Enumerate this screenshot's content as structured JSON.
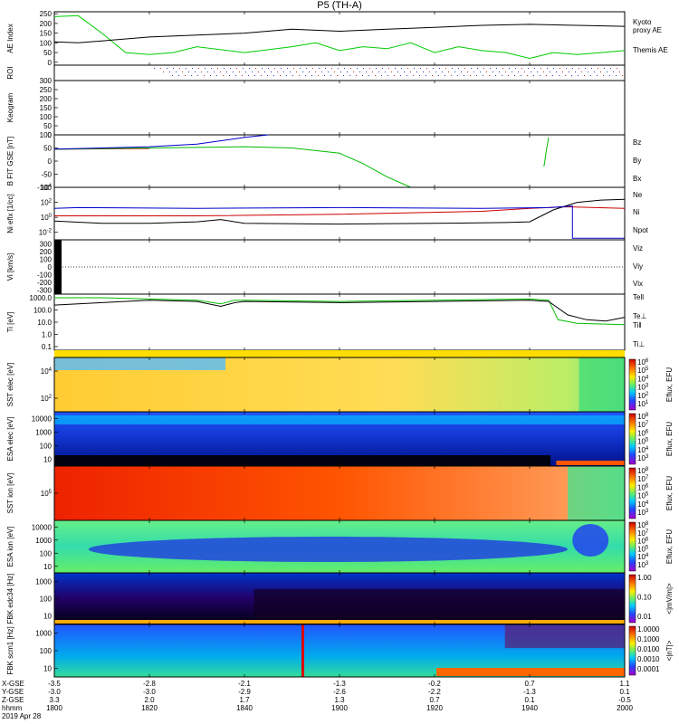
{
  "title": "P5 (TH-A)",
  "chart_data": {
    "type": "line",
    "title": "P5 (TH-A)",
    "date_label": "2019 Apr 28",
    "time_axis": {
      "rows": [
        {
          "label": "X-GSE",
          "values": [
            "-3.5",
            "-2.8",
            "-2.1",
            "-1.3",
            "-0.2",
            "0.7",
            "1.1"
          ]
        },
        {
          "label": "Y-GSE",
          "values": [
            "-3.0",
            "-3.0",
            "-2.9",
            "-2.6",
            "-2.2",
            "-1.3",
            "0.1"
          ]
        },
        {
          "label": "Z-GSE",
          "values": [
            "3.3",
            "2.0",
            "1.7",
            "1.3",
            "0.7",
            "0.1",
            "-0.5"
          ]
        },
        {
          "label": "hhmm",
          "values": [
            "1800",
            "1820",
            "1840",
            "1900",
            "1920",
            "1940",
            "2000"
          ]
        }
      ]
    },
    "panels": [
      {
        "id": "ae",
        "ylabel": "AE Index",
        "ylim": [
          -15,
          260
        ],
        "yticks": [
          "250",
          "200",
          "150",
          "100",
          "50",
          "0"
        ],
        "legend": [
          {
            "text": "Kyoto",
            "color": "#00cc00"
          },
          {
            "text": "proxy AE",
            "color": "#00cc00"
          },
          {
            "text": "Themis AE",
            "color": "#000000"
          }
        ],
        "series": [
          {
            "name": "Kyoto proxy AE",
            "color": "#00cc00",
            "x": [
              0,
              5,
              10,
              15,
              20,
              25,
              30,
              40,
              50,
              55,
              60,
              65,
              70,
              75,
              80,
              85,
              90,
              95,
              100,
              105,
              110,
              115,
              120
            ],
            "y": [
              235,
              240,
              150,
              50,
              40,
              50,
              80,
              50,
              80,
              100,
              60,
              80,
              70,
              100,
              50,
              80,
              60,
              50,
              20,
              50,
              40,
              50,
              60
            ]
          },
          {
            "name": "Themis AE",
            "color": "#000000",
            "x": [
              0,
              5,
              10,
              20,
              30,
              40,
              50,
              60,
              70,
              80,
              90,
              100,
              110,
              120
            ],
            "y": [
              105,
              100,
              110,
              130,
              140,
              150,
              170,
              160,
              170,
              180,
              190,
              195,
              190,
              185
            ]
          }
        ]
      },
      {
        "id": "roi",
        "ylabel": "ROI"
      },
      {
        "id": "keogram",
        "ylabel": "Keogram",
        "ylim": [
          0,
          300
        ],
        "yticks": [
          "300",
          "250",
          "200",
          "150",
          "100",
          "50",
          "0"
        ]
      },
      {
        "id": "bfield",
        "ylabel": "B FIT GSE [nT]",
        "ylim": [
          -100,
          100
        ],
        "yticks": [
          "100",
          "50",
          "0",
          "-50",
          "-100"
        ],
        "legend": [
          {
            "text": "Bz",
            "color": "#cc0000"
          },
          {
            "text": "By",
            "color": "#00bb00"
          },
          {
            "text": "Bx",
            "color": "#0000cc"
          }
        ],
        "series": [
          {
            "name": "Bz",
            "color": "#cc0000",
            "x": [
              0,
              20
            ],
            "y": [
              45,
              48
            ]
          },
          {
            "name": "By",
            "color": "#00bb00",
            "x": [
              0,
              10,
              20,
              30,
              40,
              50,
              60,
              65,
              70,
              75
            ],
            "y": [
              45,
              48,
              50,
              52,
              55,
              50,
              30,
              -10,
              -60,
              -120
            ]
          },
          {
            "name": "Bx",
            "color": "#0000cc",
            "x": [
              0,
              10,
              20,
              30,
              40,
              45
            ],
            "y": [
              46,
              50,
              55,
              65,
              90,
              100
            ]
          },
          {
            "name": "By2",
            "color": "#00bb00",
            "x": [
              103,
              103.2,
              103.5,
              103.8,
              104
            ],
            "y": [
              -20,
              0,
              40,
              70,
              90
            ]
          }
        ]
      },
      {
        "id": "density",
        "ylabel": "Ni eflx [1/cc]",
        "ylim": [
          -3,
          4
        ],
        "yticks": [
          "10^4",
          "10^2",
          "10^0",
          "10^-2"
        ],
        "legend": [
          {
            "text": "Ne",
            "color": "#cc0000"
          },
          {
            "text": "Ni",
            "color": "#000000"
          },
          {
            "text": "Npot",
            "color": "#0000cc"
          }
        ],
        "series": [
          {
            "name": "Ne",
            "color": "#cc0000",
            "x": [
              0,
              30,
              60,
              90,
              100,
              108,
              120
            ],
            "y": [
              0.2,
              0.2,
              0.4,
              0.8,
              1.2,
              1.4,
              1.2
            ]
          },
          {
            "name": "Ni",
            "color": "#000000",
            "x": [
              0,
              10,
              20,
              30,
              35,
              40,
              60,
              80,
              95,
              100,
              105,
              110,
              115,
              120
            ],
            "y": [
              -0.5,
              -0.8,
              -0.8,
              -0.6,
              -0.3,
              -0.8,
              -0.9,
              -0.8,
              -0.7,
              -0.6,
              1.0,
              2.0,
              2.3,
              2.4
            ]
          },
          {
            "name": "Npot",
            "color": "#0000cc",
            "x": [
              0,
              5,
              30,
              60,
              90,
              104,
              109,
              109,
              120
            ],
            "y": [
              1.2,
              1.3,
              1.2,
              1.3,
              1.2,
              1.3,
              1.5,
              -2.8,
              -2.8
            ]
          }
        ]
      },
      {
        "id": "velocity",
        "ylabel": "Vi [km/s]",
        "ylim": [
          -350,
          350
        ],
        "yticks": [
          "300",
          "200",
          "100",
          "0",
          "-100",
          "-200",
          "-300"
        ],
        "legend": [
          {
            "text": "Viz",
            "color": "#cc0000"
          },
          {
            "text": "Viy",
            "color": "#00bb00"
          },
          {
            "text": "Vix",
            "color": "#0000cc"
          }
        ]
      },
      {
        "id": "temperature",
        "ylabel": "Ti [eV]",
        "ylim": [
          -1.3,
          3.3
        ],
        "yticks": [
          "1000.0",
          "100.0",
          "10.0",
          "1.0",
          "0.1"
        ],
        "legend": [
          {
            "text": "Tell",
            "color": "#000000"
          },
          {
            "text": "Te⊥",
            "color": "#cc0000"
          },
          {
            "text": "Ti‖",
            "color": "#00bb00"
          },
          {
            "text": "Ti⊥",
            "color": "#0000cc"
          }
        ],
        "series": [
          {
            "name": "Ti||",
            "color": "#00bb00",
            "x": [
              0,
              10,
              20,
              30,
              35,
              38,
              40,
              60,
              80,
              100,
              104,
              106,
              110,
              120
            ],
            "y": [
              3.0,
              3.0,
              2.9,
              2.8,
              2.5,
              2.8,
              2.8,
              2.7,
              2.8,
              2.9,
              2.8,
              1.2,
              0.9,
              0.8
            ]
          },
          {
            "name": "Tell",
            "color": "#000000",
            "x": [
              0,
              10,
              20,
              30,
              35,
              38,
              40,
              60,
              80,
              100,
              104,
              108,
              112,
              116,
              120
            ],
            "y": [
              2.4,
              2.6,
              2.8,
              2.7,
              2.3,
              2.6,
              2.7,
              2.6,
              2.7,
              2.8,
              2.7,
              1.6,
              1.2,
              1.1,
              1.4
            ]
          }
        ]
      },
      {
        "id": "sst_e",
        "ylabel": "SST elec [eV]",
        "yticks": [
          "10^4",
          "10^2"
        ],
        "colorbar": {
          "label": "Eflux, EFU",
          "ticks": [
            "10^6",
            "10^5",
            "10^4",
            "10^3",
            "10^2",
            "10^1"
          ]
        }
      },
      {
        "id": "esa_e",
        "ylabel": "ESA elec [eV]",
        "yticks": [
          "10000",
          "1000",
          "100",
          "10"
        ],
        "colorbar": {
          "label": "Eflux, EFU",
          "ticks": [
            "10^8",
            "10^7",
            "10^6",
            "10^5",
            "10^4",
            "10^3"
          ]
        }
      },
      {
        "id": "sst_i",
        "ylabel": "SST ion [eV]",
        "yticks": [
          "10^5"
        ],
        "colorbar": {
          "label": "Eflux, EFU",
          "ticks": [
            "10^8",
            "10^7",
            "10^6",
            "10^5",
            "10^4",
            "10^3"
          ]
        }
      },
      {
        "id": "esa_i",
        "ylabel": "ESA ion [eV]",
        "yticks": [
          "10000",
          "1000",
          "100",
          "10"
        ],
        "colorbar": {
          "label": "Eflux, EFU",
          "ticks": [
            "10^8",
            "10^7",
            "10^6",
            "10^5",
            "10^4",
            "10^3"
          ]
        }
      },
      {
        "id": "fbk_e",
        "ylabel": "FBK edc34 [Hz]",
        "yticks": [
          "1000",
          "100",
          "10"
        ],
        "colorbar": {
          "label": "<|mV/m|>",
          "ticks": [
            "1.00",
            "0.10",
            "0.01"
          ]
        }
      },
      {
        "id": "fbk_b",
        "ylabel": "FBK scm1 [Hz]",
        "yticks": [
          "1000",
          "100",
          "10"
        ],
        "colorbar": {
          "label": "<|nT|>",
          "ticks": [
            "1.0000",
            "0.1000",
            "0.0100",
            "0.0010",
            "0.0001"
          ]
        }
      }
    ]
  }
}
